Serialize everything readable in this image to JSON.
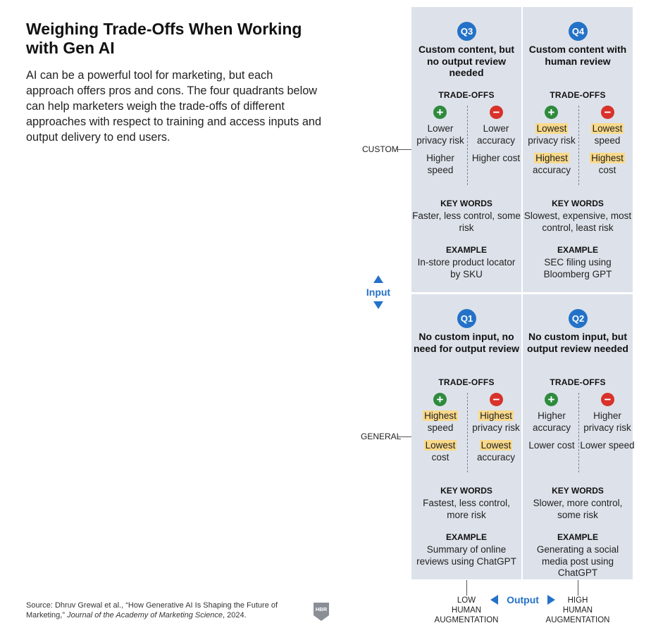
{
  "title": "Weighing Trade-Offs When Working with Gen AI",
  "intro": "AI can be a powerful tool for marketing, but each approach offers pros and cons. The four quadrants below can help marketers weigh the trade-offs of different approaches with respect to training and access inputs and output delivery to end users.",
  "labels": {
    "tradeoffs": "TRADE-OFFS",
    "keywords": "KEY WORDS",
    "example": "EXAMPLE",
    "custom": "CUSTOM",
    "general": "GENERAL",
    "input": "Input",
    "output": "Output",
    "low_1": "LOW",
    "low_2": "HUMAN",
    "low_3": "AUGMENTATION",
    "high_1": "HIGH",
    "high_2": "HUMAN",
    "high_3": "AUGMENTATION",
    "plus_symbol": "+",
    "minus_symbol": "−"
  },
  "quadrants": {
    "q3": {
      "badge": "Q3",
      "title": "Custom content, but no output review needed",
      "pros": [
        {
          "highlight": "",
          "text": "Lower privacy risk"
        },
        {
          "highlight": "",
          "text": "Higher speed"
        }
      ],
      "cons": [
        {
          "highlight": "",
          "text": "Lower accuracy"
        },
        {
          "highlight": "",
          "text": "Higher cost"
        }
      ],
      "keywords": "Faster, less control, some risk",
      "example": "In-store product locator by SKU"
    },
    "q4": {
      "badge": "Q4",
      "title": "Custom content with human review",
      "pros": [
        {
          "highlight": "Lowest",
          "text": "privacy risk"
        },
        {
          "highlight": "Highest",
          "text": "accuracy"
        }
      ],
      "cons": [
        {
          "highlight": "Lowest",
          "text": "speed"
        },
        {
          "highlight": "Highest",
          "text": "cost"
        }
      ],
      "keywords": "Slowest, expensive, most control, least risk",
      "example": "SEC filing using Bloomberg GPT"
    },
    "q1": {
      "badge": "Q1",
      "title": "No custom input, no need for output review",
      "pros": [
        {
          "highlight": "Highest",
          "text": "speed"
        },
        {
          "highlight": "Lowest",
          "text": "cost"
        }
      ],
      "cons": [
        {
          "highlight": "Highest",
          "text": "privacy risk"
        },
        {
          "highlight": "Lowest",
          "text": "accuracy"
        }
      ],
      "keywords": "Fastest, less control, more risk",
      "example": "Summary of online reviews using ChatGPT"
    },
    "q2": {
      "badge": "Q2",
      "title": "No custom input, but output review needed",
      "pros": [
        {
          "highlight": "",
          "text": "Higher accuracy"
        },
        {
          "highlight": "",
          "text": "Lower cost"
        }
      ],
      "cons": [
        {
          "highlight": "",
          "text": "Higher privacy risk"
        },
        {
          "highlight": "",
          "text": "Lower speed"
        }
      ],
      "keywords": "Slower, more control, some risk",
      "example": "Generating a social media post using ChatGPT"
    }
  },
  "source": {
    "prefix": "Source: Dhruv Grewal et al., “How Generative AI Is Shaping the Future of Marketing,” ",
    "journal": "Journal of the Academy of Marketing Science",
    "suffix": ", 2024."
  },
  "logo": {
    "text": "HBR",
    "color": "#8a8f96"
  },
  "colors": {
    "badge": "#2472c8",
    "plus": "#2e8b3e",
    "minus": "#d8322a",
    "highlight": "#f9d98a",
    "quadrant_bg": "#dde2ea"
  }
}
